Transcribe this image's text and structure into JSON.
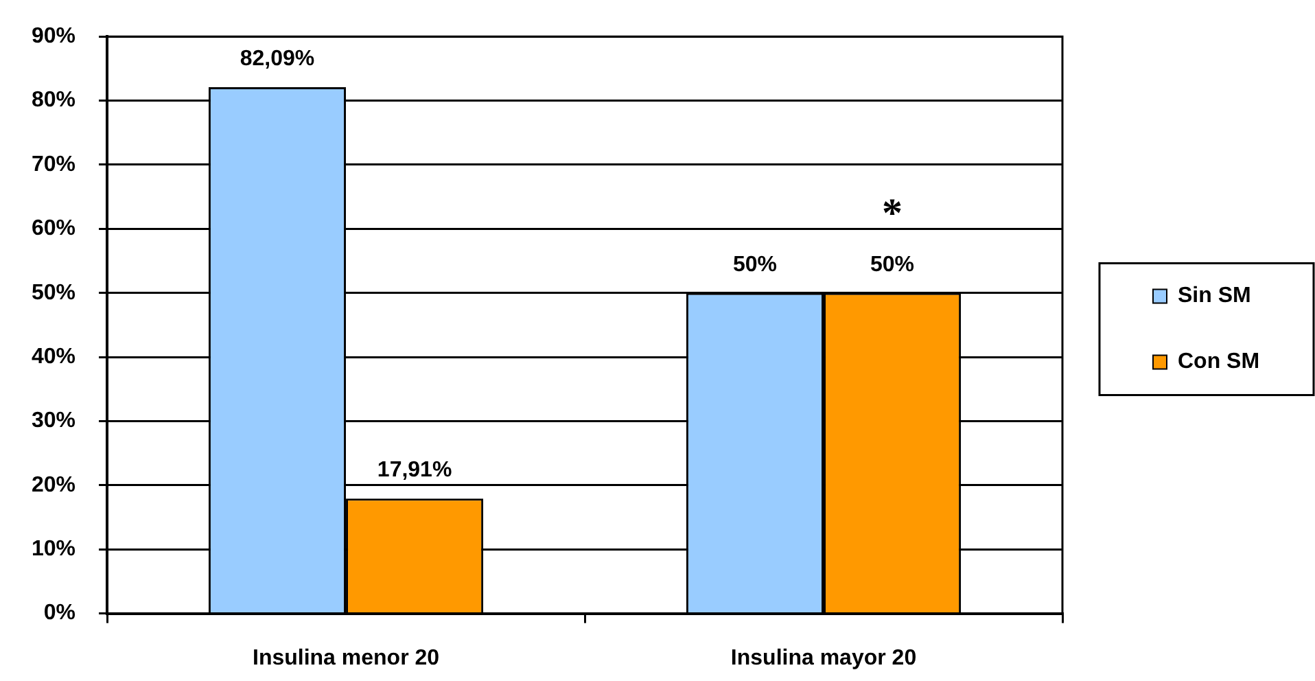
{
  "chart_data": {
    "type": "bar",
    "categories": [
      "Insulina menor 20",
      "Insulina mayor 20"
    ],
    "series": [
      {
        "name": "Sin SM",
        "color": "#99ccff",
        "values": [
          82.09,
          50
        ],
        "value_labels": [
          "82,09%",
          "50%"
        ]
      },
      {
        "name": "Con SM",
        "color": "#ff9900",
        "values": [
          17.91,
          50
        ],
        "value_labels": [
          "17,91%",
          "50%"
        ]
      }
    ],
    "ylim": [
      0,
      90
    ],
    "yticks": [
      {
        "value": 0,
        "label": "0%"
      },
      {
        "value": 10,
        "label": "10%"
      },
      {
        "value": 20,
        "label": "20%"
      },
      {
        "value": 30,
        "label": "30%"
      },
      {
        "value": 40,
        "label": "40%"
      },
      {
        "value": 50,
        "label": "50%"
      },
      {
        "value": 60,
        "label": "60%"
      },
      {
        "value": 70,
        "label": "70%"
      },
      {
        "value": 80,
        "label": "80%"
      },
      {
        "value": 90,
        "label": "90%"
      }
    ],
    "grid": "y",
    "legend": "right",
    "annotations": [
      {
        "text": "*",
        "x": "Insulina mayor 20",
        "y": 50
      }
    ]
  }
}
